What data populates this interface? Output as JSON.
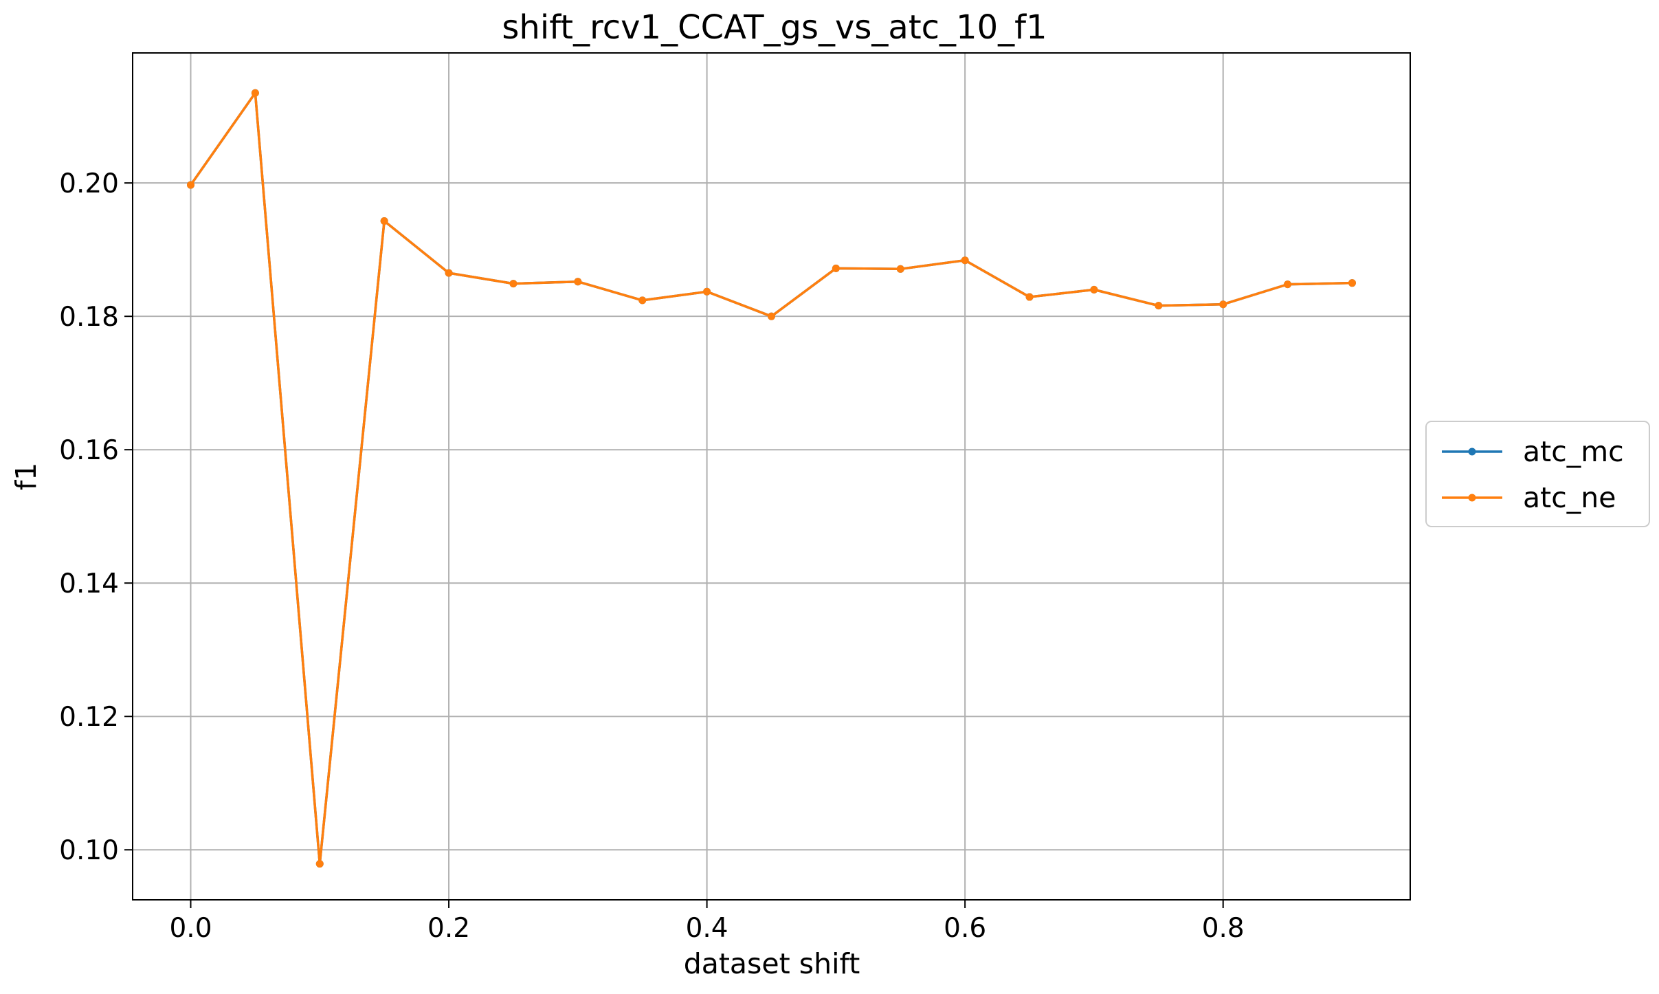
{
  "chart_data": {
    "type": "line",
    "title": "shift_rcv1_CCAT_gs_vs_atc_10_f1",
    "xlabel": "dataset shift",
    "ylabel": "f1",
    "xlim": [
      -0.045,
      0.945
    ],
    "ylim": [
      0.0925,
      0.2195
    ],
    "xticks": [
      0.0,
      0.2,
      0.4,
      0.6,
      0.8
    ],
    "xtick_labels": [
      "0.0",
      "0.2",
      "0.4",
      "0.6",
      "0.8"
    ],
    "yticks": [
      0.1,
      0.12,
      0.14,
      0.16,
      0.18,
      0.2
    ],
    "ytick_labels": [
      "0.10",
      "0.12",
      "0.14",
      "0.16",
      "0.18",
      "0.20"
    ],
    "grid": true,
    "legend_position": "right, outside plot",
    "x": [
      0.0,
      0.05,
      0.1,
      0.15,
      0.2,
      0.25,
      0.3,
      0.35,
      0.4,
      0.45,
      0.5,
      0.55,
      0.6,
      0.65,
      0.7,
      0.75,
      0.8,
      0.85,
      0.9
    ],
    "series": [
      {
        "name": "atc_mc",
        "color": "#1f77b4",
        "values": [
          0.1997,
          0.2135,
          0.0979,
          0.1943,
          0.1865,
          0.1849,
          0.1852,
          0.1824,
          0.1837,
          0.18,
          0.1872,
          0.1871,
          0.1884,
          0.1829,
          0.184,
          0.1816,
          0.1818,
          0.1848,
          0.185
        ]
      },
      {
        "name": "atc_ne",
        "color": "#ff7f0e",
        "values": [
          0.1997,
          0.2135,
          0.0979,
          0.1943,
          0.1865,
          0.1849,
          0.1852,
          0.1824,
          0.1837,
          0.18,
          0.1872,
          0.1871,
          0.1884,
          0.1829,
          0.184,
          0.1816,
          0.1818,
          0.1848,
          0.185
        ]
      }
    ]
  }
}
